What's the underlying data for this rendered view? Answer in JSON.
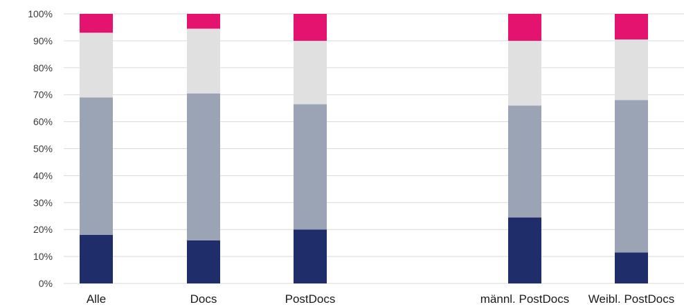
{
  "colors": {
    "grid": "#d9d9d9",
    "series": [
      "#1f2d6b",
      "#9ba4b5",
      "#e0e0e0",
      "#e4136f"
    ]
  },
  "chart_data": {
    "type": "bar",
    "stacked": true,
    "title": "",
    "xlabel": "",
    "ylabel": "",
    "ylim": [
      0,
      100
    ],
    "y_ticks": [
      "0%",
      "10%",
      "20%",
      "30%",
      "40%",
      "50%",
      "60%",
      "70%",
      "80%",
      "90%",
      "100%"
    ],
    "grid": true,
    "legend": "none",
    "categories": [
      "Alle",
      "Docs",
      "PostDocs",
      "männl. PostDocs",
      "Weibl. PostDocs"
    ],
    "series": [
      {
        "values": [
          18,
          16,
          20,
          24.5,
          11.5
        ]
      },
      {
        "values": [
          51,
          54.5,
          46.5,
          41.5,
          56.5
        ]
      },
      {
        "values": [
          24,
          24,
          23.5,
          24,
          22.5
        ]
      },
      {
        "values": [
          7,
          5.5,
          10,
          10,
          9.5
        ]
      }
    ]
  }
}
